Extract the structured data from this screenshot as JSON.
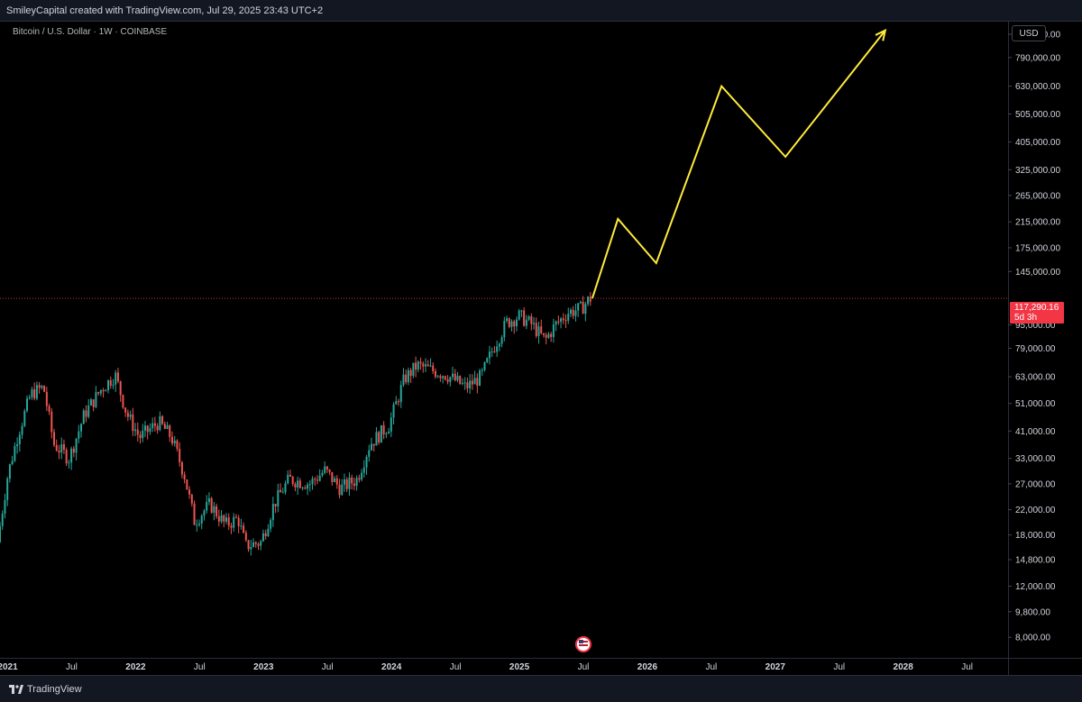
{
  "header": {
    "title": "SmileyCapital created with TradingView.com, Jul 29, 2025 23:43 UTC+2"
  },
  "symbol": {
    "label": "Bitcoin / U.S. Dollar · 1W · COINBASE"
  },
  "currency": "USD",
  "last_price": {
    "value": "117,290.16",
    "countdown": "5d 3h"
  },
  "footer": {
    "brand": "TradingView"
  },
  "colors": {
    "up": "#26a69a",
    "down": "#ef5350",
    "projection": "#ffeb3b",
    "price_line": "#f23645"
  },
  "chart_data": {
    "type": "candlestick",
    "title": "Bitcoin / U.S. Dollar · 1W · COINBASE",
    "y_scale": "log",
    "ylim": [
      6800,
      1050000
    ],
    "y_ticks": [
      {
        "value": 950000,
        "label": "950,000.00"
      },
      {
        "value": 790000,
        "label": "790,000.00"
      },
      {
        "value": 630000,
        "label": "630,000.00"
      },
      {
        "value": 505000,
        "label": "505,000.00"
      },
      {
        "value": 405000,
        "label": "405,000.00"
      },
      {
        "value": 325000,
        "label": "325,000.00"
      },
      {
        "value": 265000,
        "label": "265,000.00"
      },
      {
        "value": 215000,
        "label": "215,000.00"
      },
      {
        "value": 175000,
        "label": "175,000.00"
      },
      {
        "value": 145000,
        "label": "145,000.00"
      },
      {
        "value": 95000,
        "label": "95,000.00"
      },
      {
        "value": 79000,
        "label": "79,000.00"
      },
      {
        "value": 63000,
        "label": "63,000.00"
      },
      {
        "value": 51000,
        "label": "51,000.00"
      },
      {
        "value": 41000,
        "label": "41,000.00"
      },
      {
        "value": 33000,
        "label": "33,000.00"
      },
      {
        "value": 27000,
        "label": "27,000.00"
      },
      {
        "value": 22000,
        "label": "22,000.00"
      },
      {
        "value": 18000,
        "label": "18,000.00"
      },
      {
        "value": 14800,
        "label": "14,800.00"
      },
      {
        "value": 12000,
        "label": "12,000.00"
      },
      {
        "value": 9800,
        "label": "9,800.00"
      },
      {
        "value": 8000,
        "label": "8,000.00"
      }
    ],
    "x_ticks": [
      {
        "t": 2021.0,
        "label": "2021",
        "bold": true
      },
      {
        "t": 2021.5,
        "label": "Jul",
        "bold": false
      },
      {
        "t": 2022.0,
        "label": "2022",
        "bold": true
      },
      {
        "t": 2022.5,
        "label": "Jul",
        "bold": false
      },
      {
        "t": 2023.0,
        "label": "2023",
        "bold": true
      },
      {
        "t": 2023.5,
        "label": "Jul",
        "bold": false
      },
      {
        "t": 2024.0,
        "label": "2024",
        "bold": true
      },
      {
        "t": 2024.5,
        "label": "Jul",
        "bold": false
      },
      {
        "t": 2025.0,
        "label": "2025",
        "bold": true
      },
      {
        "t": 2025.5,
        "label": "Jul",
        "bold": false
      },
      {
        "t": 2026.0,
        "label": "2026",
        "bold": true
      },
      {
        "t": 2026.5,
        "label": "Jul",
        "bold": false
      },
      {
        "t": 2027.0,
        "label": "2027",
        "bold": true
      },
      {
        "t": 2027.5,
        "label": "Jul",
        "bold": false
      },
      {
        "t": 2028.0,
        "label": "2028",
        "bold": true
      },
      {
        "t": 2028.5,
        "label": "Jul",
        "bold": false
      }
    ],
    "x_range": [
      2020.94,
      2028.82
    ],
    "price_anchors": [
      [
        2020.94,
        17000
      ],
      [
        2021.02,
        29000
      ],
      [
        2021.1,
        40000
      ],
      [
        2021.2,
        55000
      ],
      [
        2021.3,
        58000
      ],
      [
        2021.38,
        37000
      ],
      [
        2021.5,
        33000
      ],
      [
        2021.62,
        47000
      ],
      [
        2021.75,
        57000
      ],
      [
        2021.86,
        64000
      ],
      [
        2021.95,
        47000
      ],
      [
        2022.05,
        39000
      ],
      [
        2022.2,
        44000
      ],
      [
        2022.3,
        39000
      ],
      [
        2022.4,
        29000
      ],
      [
        2022.48,
        20000
      ],
      [
        2022.6,
        23000
      ],
      [
        2022.72,
        19500
      ],
      [
        2022.82,
        20500
      ],
      [
        2022.88,
        16500
      ],
      [
        2023.0,
        17000
      ],
      [
        2023.1,
        23000
      ],
      [
        2023.22,
        28000
      ],
      [
        2023.38,
        27000
      ],
      [
        2023.5,
        30000
      ],
      [
        2023.62,
        26000
      ],
      [
        2023.75,
        28000
      ],
      [
        2023.85,
        37000
      ],
      [
        2024.0,
        43000
      ],
      [
        2024.12,
        62000
      ],
      [
        2024.22,
        69000
      ],
      [
        2024.35,
        66000
      ],
      [
        2024.45,
        64000
      ],
      [
        2024.6,
        58000
      ],
      [
        2024.72,
        63000
      ],
      [
        2024.82,
        80000
      ],
      [
        2024.92,
        97000
      ],
      [
        2025.02,
        102000
      ],
      [
        2025.12,
        95000
      ],
      [
        2025.22,
        84000
      ],
      [
        2025.3,
        95000
      ],
      [
        2025.4,
        105000
      ],
      [
        2025.5,
        108000
      ],
      [
        2025.57,
        117290
      ]
    ],
    "projection": [
      {
        "t": 2025.57,
        "v": 117290
      },
      {
        "t": 2025.77,
        "v": 220000
      },
      {
        "t": 2026.07,
        "v": 155000
      },
      {
        "t": 2026.58,
        "v": 630000
      },
      {
        "t": 2027.08,
        "v": 360000
      },
      {
        "t": 2027.86,
        "v": 980000
      }
    ],
    "last_value": 117290.16
  }
}
